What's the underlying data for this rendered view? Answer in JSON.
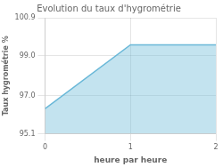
{
  "chart_data": {
    "type": "area",
    "title": "Evolution du taux d'hygrométrie",
    "x_label": "heure par heure",
    "y_label": "Taux hygrométrie %",
    "x": [
      0,
      1,
      2
    ],
    "values": [
      96.35,
      99.55,
      99.55
    ],
    "color": "#6ab8d8",
    "xlim": [
      0,
      2
    ],
    "ylim": [
      95.1,
      100.9
    ],
    "xticks": [
      0,
      1,
      2
    ],
    "yticks": [
      95.1,
      {
        "value": 97.0,
        "label": "97.0"
      },
      {
        "value": 99.0,
        "label": "99.0"
      },
      100.9
    ],
    "grid": true
  }
}
